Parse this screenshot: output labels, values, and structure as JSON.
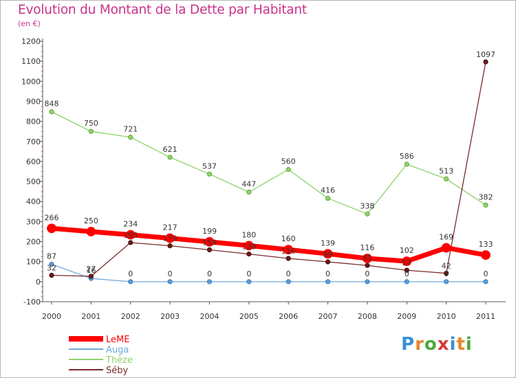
{
  "header": {
    "title": "Evolution du Montant de la Dette par Habitant",
    "unit": "(en €)"
  },
  "logo": {
    "letters": [
      "P",
      "r",
      "o",
      "x",
      "i",
      "t",
      "i"
    ],
    "colors": [
      "#3a8fd6",
      "#e8862a",
      "#4aaa3c",
      "#d63a3a",
      "#3a8fd6",
      "#e8862a",
      "#4aaa3c"
    ]
  },
  "chart_data": {
    "type": "line",
    "x": [
      "2000",
      "2001",
      "2002",
      "2003",
      "2004",
      "2005",
      "2006",
      "2007",
      "2008",
      "2009",
      "2010",
      "2011"
    ],
    "ylim": [
      -100,
      1200
    ],
    "yticks": [
      -100,
      0,
      100,
      200,
      300,
      400,
      500,
      600,
      700,
      800,
      900,
      1000,
      1100,
      1200
    ],
    "grid": false,
    "legend_position": "bottom-left",
    "series": [
      {
        "name": "LeME",
        "color": "#ff0000",
        "values": [
          266,
          250,
          234,
          217,
          199,
          180,
          160,
          139,
          116,
          102,
          169,
          133
        ],
        "labels": [
          "266",
          "250",
          "234",
          "217",
          "199",
          "180",
          "160",
          "139",
          "116",
          "102",
          "169",
          "133"
        ]
      },
      {
        "name": "Auga",
        "color": "#6fa8dc",
        "values": [
          87,
          16,
          0,
          0,
          0,
          0,
          0,
          0,
          0,
          0,
          0,
          0
        ],
        "labels": [
          "87",
          "16",
          "0",
          "0",
          "0",
          "0",
          "0",
          "0",
          "0",
          "0",
          "0",
          "0"
        ]
      },
      {
        "name": "Thèze",
        "color": "#8fd16b",
        "values": [
          848,
          750,
          721,
          621,
          537,
          447,
          560,
          416,
          338,
          586,
          513,
          382
        ],
        "labels": [
          "848",
          "750",
          "721",
          "621",
          "537",
          "447",
          "560",
          "416",
          "338",
          "586",
          "513",
          "382"
        ]
      },
      {
        "name": "Séby",
        "color": "#7a2a2a",
        "values": [
          32,
          27,
          195,
          179,
          159,
          138,
          116,
          99,
          81,
          57,
          42,
          1097
        ],
        "labels": [
          "32",
          "27",
          "195",
          "179",
          "159",
          "138",
          "116",
          "99",
          "81",
          "57",
          "42",
          "1097"
        ]
      }
    ]
  }
}
